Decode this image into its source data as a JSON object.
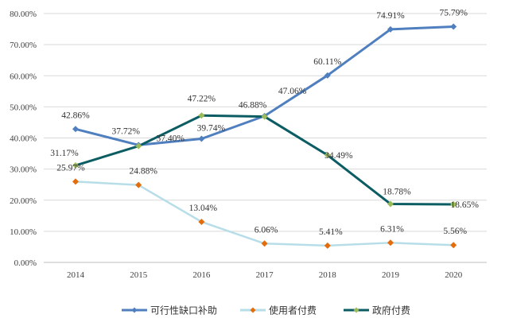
{
  "chart_data": {
    "type": "line",
    "title": "",
    "xlabel": "",
    "ylabel": "",
    "categories": [
      "2014",
      "2015",
      "2016",
      "2017",
      "2018",
      "2019",
      "2020"
    ],
    "ylim": [
      0,
      80
    ],
    "yticks": [
      "0.00%",
      "10.00%",
      "20.00%",
      "30.00%",
      "40.00%",
      "50.00%",
      "60.00%",
      "70.00%",
      "80.00%"
    ],
    "grid": true,
    "legend": "bottom",
    "series": [
      {
        "name": "可行性缺口补助",
        "color": "#4F7FBF",
        "marker": "diamond",
        "marker_color": "#4F7FBF",
        "values": [
          42.86,
          37.72,
          39.74,
          47.06,
          60.11,
          74.91,
          75.79
        ],
        "labels": [
          "42.86%",
          "37.72%",
          "39.74%",
          "47.06%",
          "60.11%",
          "74.91%",
          "75.79%"
        ]
      },
      {
        "name": "使用者付费",
        "color": "#B7DEE8",
        "marker": "diamond",
        "marker_color": "#E46C0A",
        "values": [
          25.97,
          24.88,
          13.04,
          6.06,
          5.41,
          6.31,
          5.56
        ],
        "labels": [
          "25.97%",
          "24.88%",
          "13.04%",
          "6.06%",
          "5.41%",
          "6.31%",
          "5.56%"
        ]
      },
      {
        "name": "政府付费",
        "color": "#0B5D63",
        "marker": "diamond",
        "marker_color": "#9BBB59",
        "values": [
          31.17,
          37.4,
          47.22,
          46.88,
          34.49,
          18.78,
          18.65
        ],
        "labels": [
          "31.17%",
          "37.40%",
          "47.22%",
          "46.88%",
          "34.49%",
          "18.78%",
          "18.65%"
        ]
      }
    ]
  }
}
